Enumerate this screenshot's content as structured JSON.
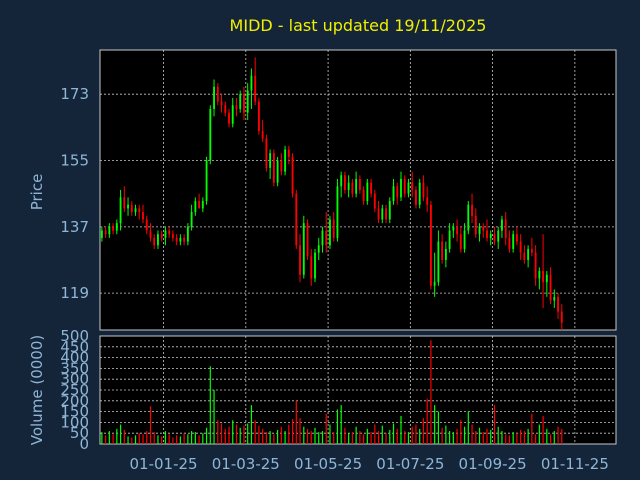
{
  "colors": {
    "background": "#14253a",
    "plot_area": "#000000",
    "title": "#f0f000",
    "axis_text": "#8fb6d6",
    "grid": "#c8c8c8",
    "up": "#00ff00",
    "down": "#ff0000"
  },
  "chart_data": [
    {
      "type": "candlestick",
      "title": "MIDD - last updated 19/11/2025",
      "ylabel": "Price",
      "y_ticks": [
        119,
        137,
        155,
        173
      ],
      "ylim": [
        109,
        185
      ],
      "x_ticks": [
        "01-01-25",
        "01-03-25",
        "01-05-25",
        "01-07-25",
        "01-09-25",
        "01-11-25"
      ],
      "x_tick_positions": [
        17,
        39,
        61,
        83,
        105,
        127
      ],
      "xlim": [
        0,
        138
      ],
      "grid": true,
      "candles": [
        [
          134,
          137,
          133,
          136
        ],
        [
          136,
          137,
          134,
          135
        ],
        [
          135,
          138,
          134,
          137
        ],
        [
          137,
          138,
          135,
          136
        ],
        [
          136,
          139,
          135,
          138
        ],
        [
          138,
          147,
          136,
          145
        ],
        [
          145,
          148,
          141,
          142
        ],
        [
          142,
          145,
          140,
          143
        ],
        [
          143,
          144,
          140,
          141
        ],
        [
          141,
          143,
          140,
          142
        ],
        [
          142,
          143,
          139,
          141
        ],
        [
          141,
          143,
          138,
          139
        ],
        [
          139,
          140,
          135,
          136
        ],
        [
          136,
          138,
          133,
          134
        ],
        [
          134,
          135,
          131,
          132
        ],
        [
          132,
          136,
          131,
          135
        ],
        [
          135,
          136,
          133,
          134
        ],
        [
          134,
          137,
          132,
          136
        ],
        [
          136,
          137,
          134,
          135
        ],
        [
          135,
          136,
          133,
          134
        ],
        [
          134,
          135,
          132,
          133
        ],
        [
          133,
          135,
          132,
          134
        ],
        [
          134,
          135,
          132,
          133
        ],
        [
          133,
          138,
          132,
          137
        ],
        [
          137,
          143,
          136,
          141
        ],
        [
          141,
          145,
          140,
          144
        ],
        [
          144,
          146,
          142,
          142
        ],
        [
          142,
          145,
          141,
          144
        ],
        [
          144,
          156,
          143,
          155
        ],
        [
          155,
          170,
          154,
          169
        ],
        [
          169,
          177,
          167,
          175
        ],
        [
          175,
          176,
          170,
          171
        ],
        [
          171,
          173,
          168,
          170
        ],
        [
          170,
          171,
          167,
          168
        ],
        [
          168,
          169,
          164,
          165
        ],
        [
          165,
          172,
          164,
          170
        ],
        [
          170,
          172,
          167,
          169
        ],
        [
          169,
          174,
          168,
          173
        ],
        [
          173,
          175,
          166,
          168
        ],
        [
          168,
          176,
          166,
          174
        ],
        [
          174,
          180,
          169,
          178
        ],
        [
          178,
          183,
          170,
          171
        ],
        [
          171,
          172,
          162,
          163
        ],
        [
          163,
          166,
          160,
          161
        ],
        [
          161,
          162,
          152,
          153
        ],
        [
          153,
          158,
          150,
          157
        ],
        [
          157,
          158,
          148,
          149
        ],
        [
          149,
          156,
          148,
          155
        ],
        [
          155,
          157,
          151,
          152
        ],
        [
          152,
          159,
          151,
          158
        ],
        [
          158,
          159,
          154,
          156
        ],
        [
          156,
          157,
          145,
          146
        ],
        [
          146,
          147,
          131,
          132
        ],
        [
          132,
          135,
          122,
          124
        ],
        [
          124,
          140,
          123,
          138
        ],
        [
          138,
          139,
          128,
          129
        ],
        [
          129,
          131,
          121,
          123
        ],
        [
          123,
          131,
          122,
          130
        ],
        [
          130,
          134,
          128,
          132
        ],
        [
          132,
          137,
          130,
          136
        ],
        [
          136,
          141,
          130,
          132
        ],
        [
          132,
          140,
          131,
          139
        ],
        [
          139,
          141,
          133,
          134
        ],
        [
          134,
          150,
          133,
          148
        ],
        [
          148,
          152,
          145,
          151
        ],
        [
          151,
          152,
          146,
          147
        ],
        [
          147,
          151,
          145,
          149
        ],
        [
          149,
          150,
          145,
          146
        ],
        [
          146,
          152,
          145,
          150
        ],
        [
          150,
          151,
          146,
          147
        ],
        [
          147,
          148,
          143,
          144
        ],
        [
          144,
          150,
          143,
          149
        ],
        [
          149,
          150,
          145,
          146
        ],
        [
          146,
          147,
          141,
          142
        ],
        [
          142,
          144,
          138,
          139
        ],
        [
          139,
          143,
          138,
          142
        ],
        [
          142,
          143,
          138,
          139
        ],
        [
          139,
          145,
          138,
          144
        ],
        [
          144,
          150,
          143,
          148
        ],
        [
          148,
          149,
          143,
          145
        ],
        [
          145,
          152,
          144,
          150
        ],
        [
          150,
          151,
          145,
          146
        ],
        [
          146,
          150,
          145,
          149
        ],
        [
          149,
          152,
          145,
          147
        ],
        [
          147,
          148,
          142,
          143
        ],
        [
          143,
          150,
          142,
          149
        ],
        [
          149,
          151,
          144,
          145
        ],
        [
          145,
          148,
          141,
          143
        ],
        [
          143,
          144,
          120,
          121
        ],
        [
          121,
          130,
          118,
          122
        ],
        [
          122,
          136,
          121,
          133
        ],
        [
          133,
          135,
          127,
          128
        ],
        [
          128,
          133,
          126,
          131
        ],
        [
          131,
          138,
          130,
          136
        ],
        [
          136,
          138,
          134,
          137
        ],
        [
          137,
          139,
          133,
          135
        ],
        [
          135,
          137,
          130,
          131
        ],
        [
          131,
          138,
          130,
          136
        ],
        [
          136,
          144,
          135,
          143
        ],
        [
          143,
          146,
          138,
          140
        ],
        [
          140,
          142,
          134,
          135
        ],
        [
          135,
          138,
          133,
          137
        ],
        [
          137,
          138,
          134,
          136
        ],
        [
          136,
          139,
          133,
          134
        ],
        [
          134,
          136,
          132,
          135
        ],
        [
          135,
          137,
          132,
          133
        ],
        [
          133,
          137,
          131,
          136
        ],
        [
          136,
          140,
          134,
          139
        ],
        [
          139,
          141,
          132,
          134
        ],
        [
          134,
          136,
          130,
          131
        ],
        [
          131,
          136,
          130,
          135
        ],
        [
          135,
          137,
          132,
          133
        ],
        [
          133,
          135,
          128,
          130
        ],
        [
          130,
          132,
          127,
          128
        ],
        [
          128,
          132,
          126,
          131
        ],
        [
          131,
          134,
          129,
          130
        ],
        [
          130,
          132,
          121,
          123
        ],
        [
          123,
          126,
          120,
          125
        ],
        [
          125,
          135,
          115,
          122
        ],
        [
          122,
          125,
          118,
          124
        ],
        [
          124,
          126,
          116,
          117
        ],
        [
          117,
          120,
          115,
          118
        ],
        [
          118,
          119,
          112,
          114
        ],
        [
          114,
          116,
          109,
          111
        ]
      ]
    },
    {
      "type": "bar",
      "ylabel": "Volume (0000)",
      "y_ticks": [
        0,
        50,
        100,
        150,
        200,
        250,
        300,
        350,
        400,
        450,
        500
      ],
      "ylim": [
        0,
        500
      ],
      "volumes": [
        55,
        40,
        60,
        45,
        70,
        90,
        65,
        35,
        30,
        40,
        50,
        45,
        60,
        175,
        55,
        40,
        35,
        60,
        45,
        30,
        40,
        35,
        50,
        45,
        60,
        55,
        40,
        50,
        75,
        360,
        250,
        110,
        95,
        70,
        80,
        110,
        90,
        75,
        85,
        95,
        180,
        110,
        85,
        70,
        55,
        60,
        45,
        65,
        80,
        60,
        90,
        115,
        200,
        120,
        80,
        70,
        60,
        75,
        55,
        60,
        140,
        90,
        55,
        160,
        180,
        75,
        50,
        55,
        80,
        60,
        45,
        70,
        55,
        90,
        60,
        85,
        50,
        65,
        95,
        70,
        130,
        60,
        55,
        80,
        90,
        70,
        120,
        210,
        480,
        180,
        150,
        75,
        85,
        60,
        55,
        70,
        110,
        80,
        150,
        90,
        60,
        75,
        55,
        70,
        65,
        180,
        80,
        60,
        45,
        40,
        55,
        50,
        65,
        60,
        70,
        140,
        45,
        90,
        130,
        70,
        45,
        60,
        80,
        70
      ]
    }
  ]
}
